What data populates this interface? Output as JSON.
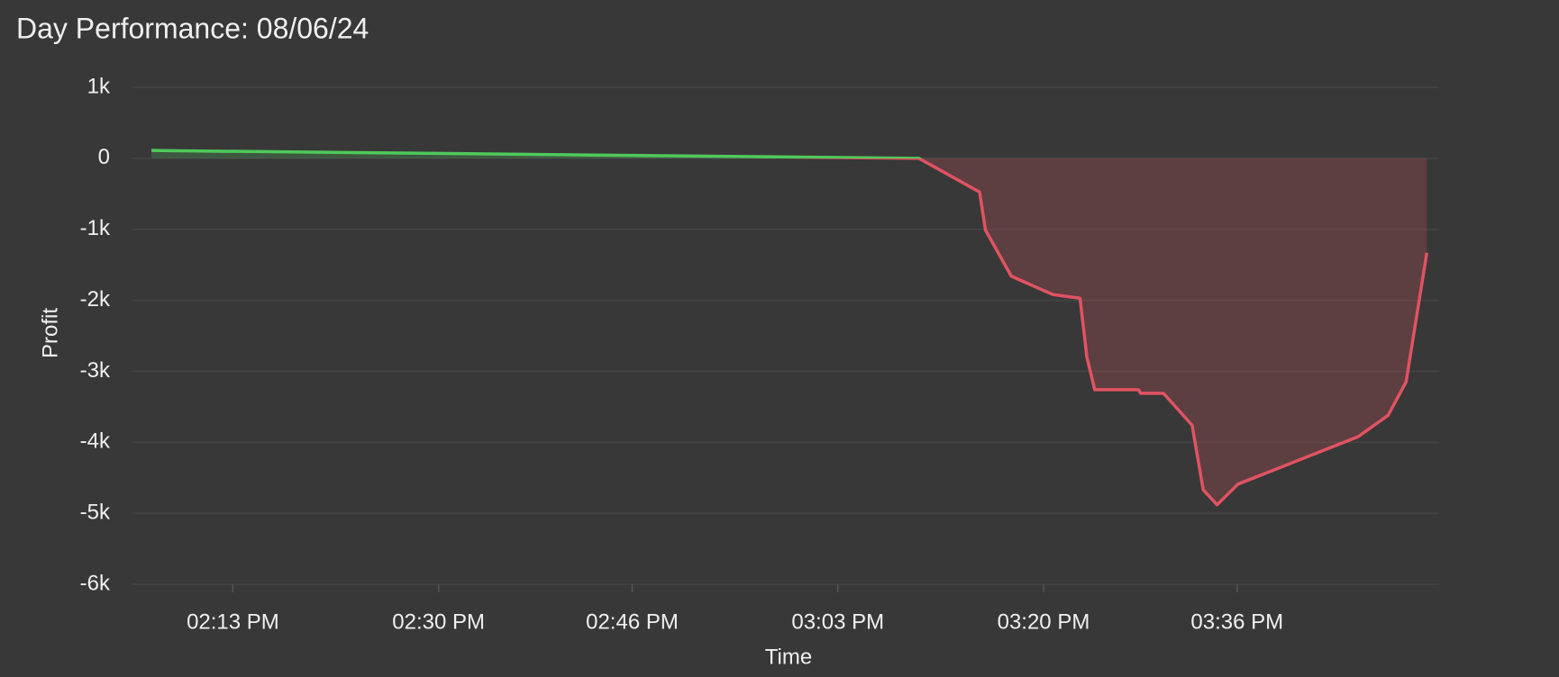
{
  "chart_data": {
    "type": "line",
    "title": "Day Performance: 08/06/24",
    "x_label": "Time",
    "y_label": "Profit",
    "x": [
      "14:06:16",
      "15:09:42",
      "15:14:43",
      "15:15:12",
      "15:17:20",
      "15:20:47",
      "15:23:01",
      "15:23:35",
      "15:24:14",
      "15:27:52",
      "15:28:01",
      "15:29:55",
      "15:32:17",
      "15:33:12",
      "15:34:21",
      "15:36:04",
      "15:46:01",
      "15:48:29",
      "15:49:58",
      "15:51:41"
    ],
    "series": [
      {
        "name": "Profit",
        "values": [
          110,
          0,
          -475,
          -1010,
          -1660,
          -1920,
          -1970,
          -2800,
          -3260,
          -3260,
          -3310,
          -3310,
          -3760,
          -4670,
          -4880,
          -4590,
          -3920,
          -3620,
          -3150,
          -1330
        ]
      }
    ],
    "positive_color": "#4fc95a",
    "negative_color": "#e05361",
    "area": true,
    "xlim": [
      "14:04:42",
      "15:52:42"
    ],
    "xticks": [
      {
        "value": "14:13",
        "label": "02:13 PM"
      },
      {
        "value": "14:30",
        "label": "02:30 PM"
      },
      {
        "value": "14:46",
        "label": "02:46 PM"
      },
      {
        "value": "15:03",
        "label": "03:03 PM"
      },
      {
        "value": "15:20",
        "label": "03:20 PM"
      },
      {
        "value": "15:36",
        "label": "03:36 PM"
      }
    ],
    "ylim": [
      -6000,
      1000
    ],
    "yticks": [
      {
        "value": 1000,
        "label": "1k"
      },
      0,
      {
        "value": -1000,
        "label": "-1k"
      },
      {
        "value": -2000,
        "label": "-2k"
      },
      {
        "value": -3000,
        "label": "-3k"
      },
      {
        "value": -4000,
        "label": "-4k"
      },
      {
        "value": -5000,
        "label": "-5k"
      },
      {
        "value": -6000,
        "label": "-6k"
      }
    ],
    "grid": true
  }
}
